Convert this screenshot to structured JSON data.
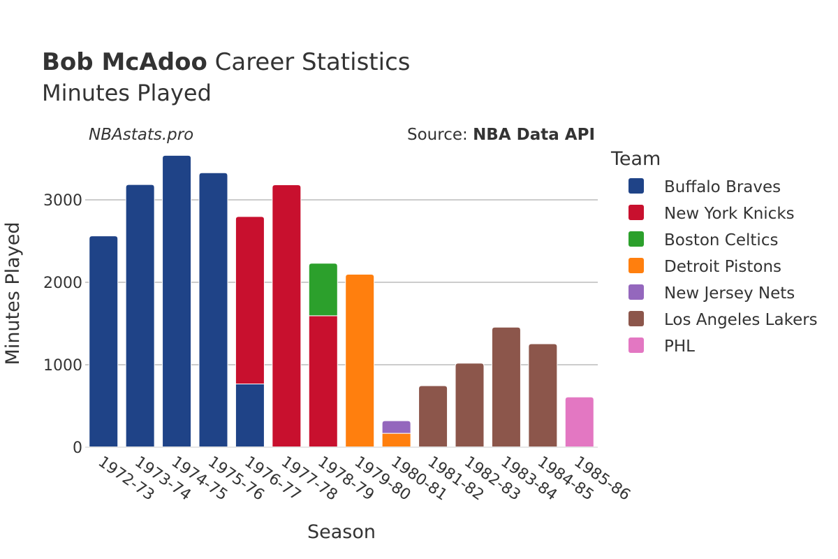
{
  "header": {
    "title_bold": "Bob McAdoo",
    "title_rest": " Career Statistics",
    "subtitle": "Minutes Played",
    "watermark": "NBAstats.pro",
    "source_label": "Source: ",
    "source_value": "NBA Data API"
  },
  "chart_data": {
    "type": "bar",
    "stacked": true,
    "xlabel": "Season",
    "ylabel": "Minutes Played",
    "ylim": [
      0,
      3600
    ],
    "yticks": [
      0,
      1000,
      2000,
      3000
    ],
    "grid": true,
    "legend_title": "Team",
    "legend_position": "right",
    "categories": [
      "1972-73",
      "1973-74",
      "1974-75",
      "1975-76",
      "1976-77",
      "1977-78",
      "1978-79",
      "1979-80",
      "1980-81",
      "1981-82",
      "1982-83",
      "1983-84",
      "1984-85",
      "1985-86"
    ],
    "series": [
      {
        "name": "Buffalo Braves",
        "color": "#1f4387",
        "values": [
          2562,
          3185,
          3539,
          3328,
          767,
          0,
          0,
          0,
          0,
          0,
          0,
          0,
          0,
          0
        ]
      },
      {
        "name": "New York Knicks",
        "color": "#c8102e",
        "values": [
          0,
          0,
          0,
          0,
          2031,
          3182,
          1594,
          0,
          0,
          0,
          0,
          0,
          0,
          0
        ]
      },
      {
        "name": "Boston Celtics",
        "color": "#2ca02c",
        "values": [
          0,
          0,
          0,
          0,
          0,
          0,
          637,
          0,
          0,
          0,
          0,
          0,
          0,
          0
        ]
      },
      {
        "name": "Detroit Pistons",
        "color": "#ff7f0e",
        "values": [
          0,
          0,
          0,
          0,
          0,
          0,
          0,
          2097,
          168,
          0,
          0,
          0,
          0,
          0
        ]
      },
      {
        "name": "New Jersey Nets",
        "color": "#9467bd",
        "values": [
          0,
          0,
          0,
          0,
          0,
          0,
          0,
          0,
          153,
          0,
          0,
          0,
          0,
          0
        ]
      },
      {
        "name": "Los Angeles Lakers",
        "color": "#8c564b",
        "values": [
          0,
          0,
          0,
          0,
          0,
          0,
          0,
          0,
          0,
          746,
          1019,
          1456,
          1254,
          0
        ]
      },
      {
        "name": "PHL",
        "color": "#e377c2",
        "values": [
          0,
          0,
          0,
          0,
          0,
          0,
          0,
          0,
          0,
          0,
          0,
          0,
          0,
          609
        ]
      }
    ]
  }
}
